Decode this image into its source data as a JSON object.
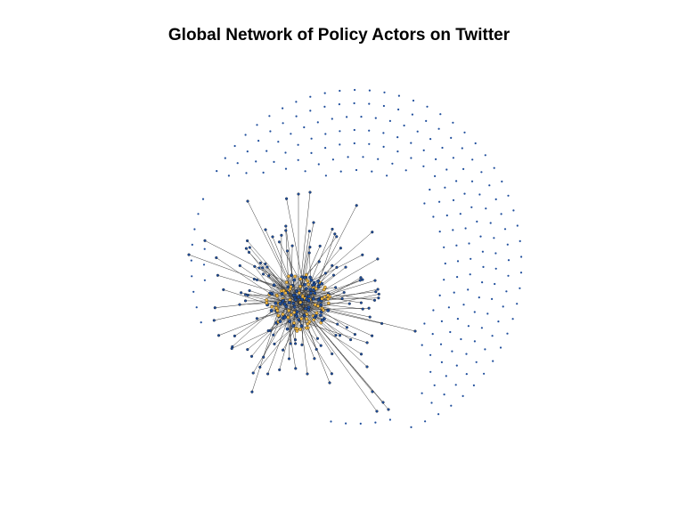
{
  "title": "Global Network of Policy Actors on Twitter",
  "colors": {
    "isolate_node": "#1f4e9c",
    "core_node": "#f4b942",
    "node_outline": "#000000",
    "edge": "#3a3a3a",
    "core_edge": "#b0b0b0"
  }
}
